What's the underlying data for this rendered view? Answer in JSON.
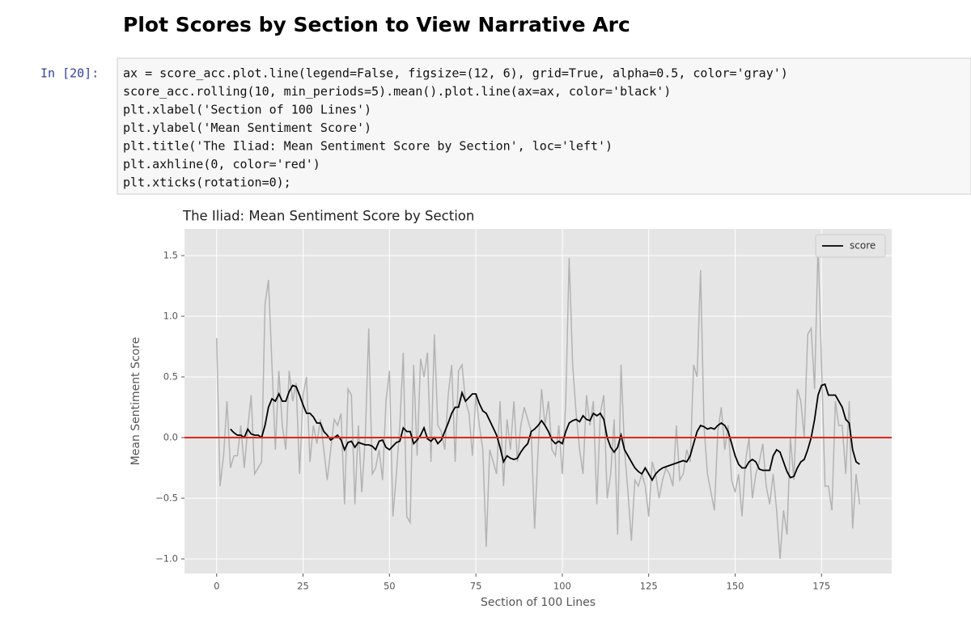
{
  "heading": "Plot Scores by Section to View Narrative Arc",
  "cell": {
    "prompt": "In [20]:",
    "code": [
      "ax = score_acc.plot.line(legend=False, figsize=(12, 6), grid=True, alpha=0.5, color='gray')",
      "score_acc.rolling(10, min_periods=5).mean().plot.line(ax=ax, color='black')",
      "plt.xlabel('Section of 100 Lines')",
      "plt.ylabel('Mean Sentiment Score')",
      "plt.title('The Iliad: Mean Sentiment Score by Section', loc='left')",
      "plt.axhline(0, color='red')",
      "plt.xticks(rotation=0);"
    ]
  },
  "chart_data": {
    "type": "line",
    "title": "The Iliad: Mean Sentiment Score by Section",
    "x_label": "Section of 100 Lines",
    "y_label": "Mean Sentiment Score",
    "x": [
      0,
      1,
      2,
      3,
      4,
      5,
      6,
      7,
      8,
      9,
      10,
      11,
      12,
      13,
      14,
      15,
      16,
      17,
      18,
      19,
      20,
      21,
      22,
      23,
      24,
      25,
      26,
      27,
      28,
      29,
      30,
      31,
      32,
      33,
      34,
      35,
      36,
      37,
      38,
      39,
      40,
      41,
      42,
      43,
      44,
      45,
      46,
      47,
      48,
      49,
      50,
      51,
      52,
      53,
      54,
      55,
      56,
      57,
      58,
      59,
      60,
      61,
      62,
      63,
      64,
      65,
      66,
      67,
      68,
      69,
      70,
      71,
      72,
      73,
      74,
      75,
      76,
      77,
      78,
      79,
      80,
      81,
      82,
      83,
      84,
      85,
      86,
      87,
      88,
      89,
      90,
      91,
      92,
      93,
      94,
      95,
      96,
      97,
      98,
      99,
      100,
      101,
      102,
      103,
      104,
      105,
      106,
      107,
      108,
      109,
      110,
      111,
      112,
      113,
      114,
      115,
      116,
      117,
      118,
      119,
      120,
      121,
      122,
      123,
      124,
      125,
      126,
      127,
      128,
      129,
      130,
      131,
      132,
      133,
      134,
      135,
      136,
      137,
      138,
      139,
      140,
      141,
      142,
      143,
      144,
      145,
      146,
      147,
      148,
      149,
      150,
      151,
      152,
      153,
      154,
      155,
      156,
      157,
      158,
      159,
      160,
      161,
      162,
      163,
      164,
      165,
      166,
      167,
      168,
      169,
      170,
      171,
      172,
      173,
      174,
      175,
      176,
      177,
      178,
      179,
      180,
      181,
      182,
      183,
      184,
      185,
      186
    ],
    "series": [
      {
        "color": "#b3b3b3",
        "values": [
          0.82,
          -0.4,
          -0.15,
          0.3,
          -0.25,
          -0.15,
          -0.15,
          0.1,
          -0.25,
          0.08,
          0.35,
          -0.3,
          -0.25,
          -0.2,
          1.1,
          1.3,
          0.6,
          -0.1,
          0.55,
          0.1,
          -0.1,
          0.55,
          0.3,
          0.45,
          -0.3,
          0.35,
          0.5,
          -0.2,
          0.1,
          -0.05,
          0.15,
          -0.1,
          -0.35,
          -0.1,
          0.15,
          0.1,
          0.2,
          -0.55,
          0.4,
          0.35,
          -0.55,
          0.1,
          -0.45,
          0.0,
          0.9,
          -0.3,
          -0.25,
          -0.1,
          -0.35,
          0.3,
          0.55,
          -0.65,
          -0.3,
          0.1,
          0.7,
          -0.65,
          -0.7,
          0.6,
          -0.15,
          0.65,
          0.5,
          0.7,
          -0.2,
          0.85,
          0.1,
          0.05,
          -0.1,
          0.35,
          0.6,
          -0.2,
          0.55,
          0.6,
          0.3,
          0.2,
          -0.15,
          0.35,
          0.1,
          -0.1,
          -0.9,
          -0.1,
          -0.2,
          -0.3,
          0.3,
          -0.4,
          0.15,
          -0.1,
          0.3,
          -0.2,
          0.1,
          0.25,
          0.15,
          0.05,
          -0.75,
          -0.1,
          0.4,
          0.1,
          0.3,
          -0.1,
          -0.15,
          0.1,
          -0.3,
          0.3,
          1.48,
          0.6,
          0.2,
          -0.1,
          -0.3,
          0.35,
          0.1,
          0.3,
          -0.55,
          0.2,
          0.35,
          -0.5,
          -0.3,
          0.15,
          -0.8,
          0.6,
          -0.1,
          -0.45,
          -0.85,
          -0.35,
          -0.4,
          -0.3,
          -0.4,
          -0.65,
          -0.2,
          -0.3,
          -0.5,
          -0.35,
          -0.25,
          -0.3,
          -0.4,
          0.1,
          -0.35,
          -0.3,
          -0.1,
          -0.2,
          0.6,
          0.5,
          1.38,
          0.1,
          -0.3,
          -0.45,
          -0.6,
          0.05,
          0.25,
          -0.1,
          0.1,
          -0.35,
          -0.45,
          -0.3,
          -0.65,
          -0.2,
          0.0,
          -0.5,
          -0.3,
          -0.2,
          -0.05,
          -0.4,
          -0.55,
          -0.3,
          -0.6,
          -1.0,
          -0.6,
          -0.8,
          0.0,
          -0.35,
          0.4,
          0.3,
          0.0,
          0.85,
          0.9,
          0.4,
          1.6,
          0.6,
          -0.4,
          -0.4,
          -0.6,
          0.3,
          0.1,
          0.1,
          -0.3,
          0.3,
          -0.75,
          -0.3,
          -0.55
        ]
      },
      {
        "name": "score",
        "color": "#000000",
        "values": [
          null,
          null,
          null,
          null,
          0.07,
          0.04,
          0.02,
          0.02,
          0.0,
          0.07,
          0.03,
          0.02,
          0.02,
          0.0,
          0.1,
          0.25,
          0.32,
          0.3,
          0.36,
          0.3,
          0.3,
          0.38,
          0.43,
          0.42,
          0.35,
          0.27,
          0.2,
          0.2,
          0.17,
          0.12,
          0.12,
          0.05,
          0.02,
          -0.02,
          0.0,
          0.02,
          -0.02,
          -0.1,
          -0.04,
          -0.03,
          -0.08,
          -0.04,
          -0.05,
          -0.06,
          -0.06,
          -0.07,
          -0.1,
          -0.03,
          -0.02,
          -0.08,
          -0.1,
          -0.07,
          -0.04,
          -0.03,
          0.08,
          0.05,
          0.05,
          -0.05,
          -0.02,
          0.02,
          0.08,
          -0.01,
          -0.03,
          0.0,
          -0.05,
          -0.02,
          0.05,
          0.12,
          0.2,
          0.25,
          0.25,
          0.37,
          0.3,
          0.33,
          0.36,
          0.36,
          0.28,
          0.22,
          0.2,
          0.14,
          0.08,
          0.02,
          -0.08,
          -0.2,
          -0.15,
          -0.17,
          -0.18,
          -0.17,
          -0.12,
          -0.08,
          -0.05,
          0.05,
          0.07,
          0.1,
          0.14,
          0.1,
          0.05,
          -0.02,
          -0.05,
          -0.03,
          -0.05,
          0.05,
          0.12,
          0.14,
          0.15,
          0.13,
          0.18,
          0.15,
          0.14,
          0.2,
          0.18,
          0.2,
          0.15,
          0.0,
          -0.08,
          -0.12,
          -0.08,
          0.02,
          -0.1,
          -0.15,
          -0.2,
          -0.25,
          -0.28,
          -0.3,
          -0.25,
          -0.3,
          -0.35,
          -0.3,
          -0.27,
          -0.25,
          -0.24,
          -0.23,
          -0.22,
          -0.21,
          -0.2,
          -0.19,
          -0.2,
          -0.15,
          -0.05,
          0.05,
          0.1,
          0.09,
          0.07,
          0.08,
          0.07,
          0.1,
          0.12,
          0.1,
          0.05,
          -0.05,
          -0.15,
          -0.22,
          -0.25,
          -0.25,
          -0.2,
          -0.18,
          -0.2,
          -0.26,
          -0.27,
          -0.27,
          -0.27,
          -0.15,
          -0.1,
          -0.12,
          -0.2,
          -0.28,
          -0.33,
          -0.32,
          -0.25,
          -0.2,
          -0.18,
          -0.1,
          0.0,
          0.15,
          0.35,
          0.43,
          0.44,
          0.35,
          0.35,
          0.35,
          0.3,
          0.25,
          0.15,
          0.12,
          -0.1,
          -0.2,
          -0.22
        ]
      }
    ],
    "axhline": {
      "value": 0,
      "color": "#e3261d"
    },
    "xlim": [
      -9.3,
      195.3
    ],
    "ylim": [
      -1.12,
      1.72
    ],
    "xticks": [
      0,
      25,
      50,
      75,
      100,
      125,
      150,
      175
    ],
    "yticks": [
      {
        "value": -1.0,
        "label": "−1.0"
      },
      {
        "value": -0.5,
        "label": "−0.5"
      },
      {
        "value": 0,
        "label": "0.0"
      },
      0.5,
      {
        "value": 1.0,
        "label": "1.0"
      },
      1.5
    ],
    "grid": true,
    "legend": "upper right"
  }
}
